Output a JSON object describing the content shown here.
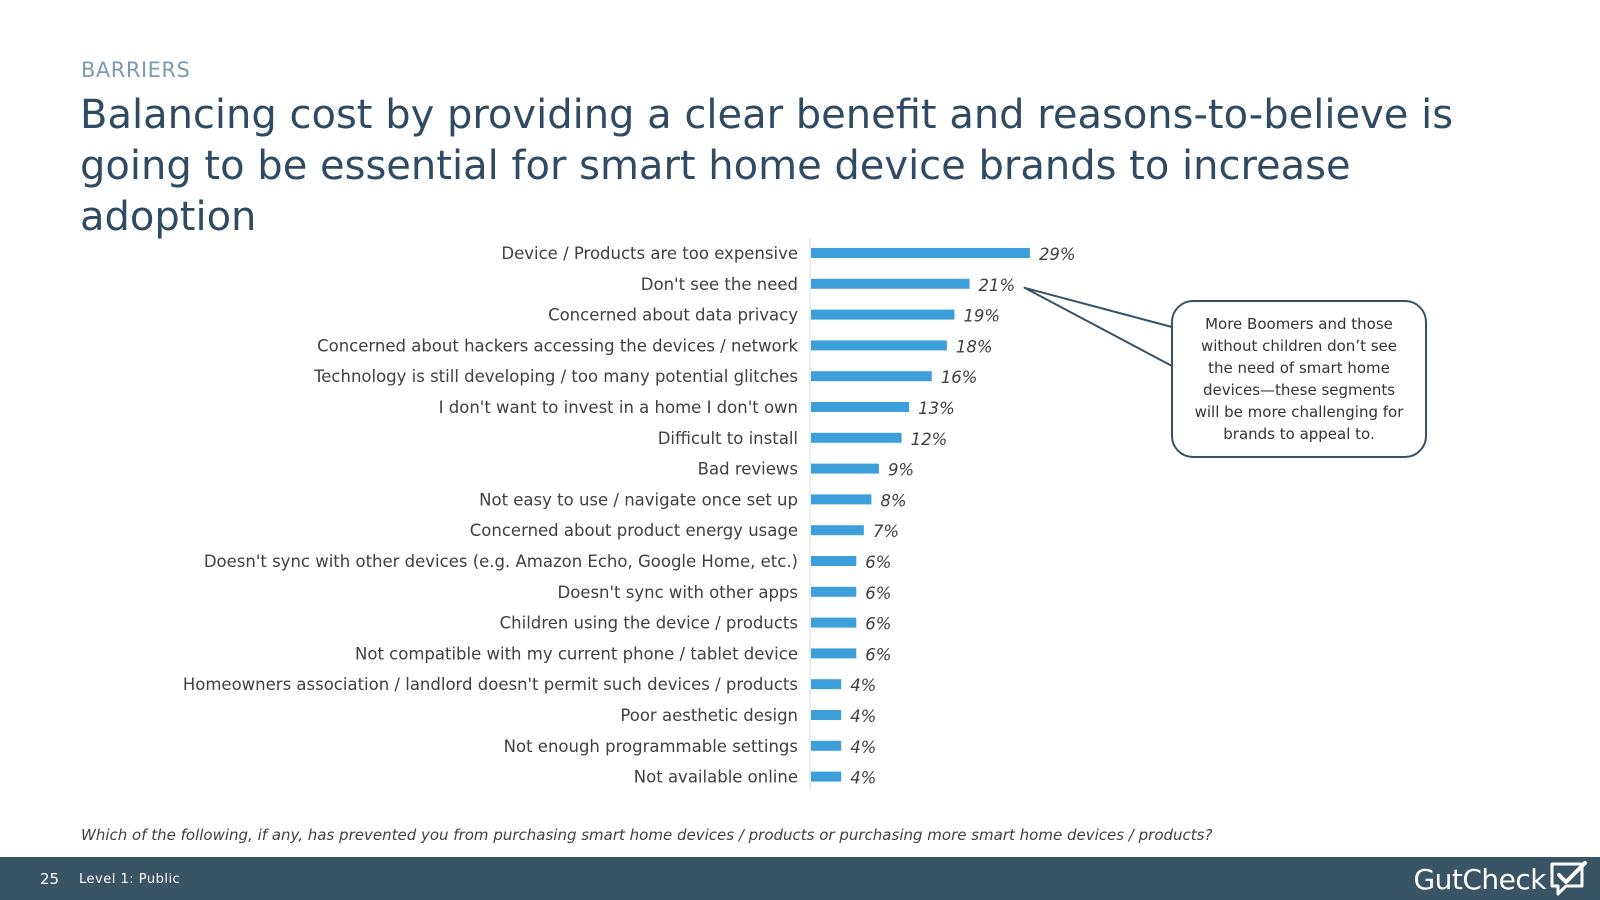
{
  "header": {
    "section": "BARRIERS",
    "title": "Balancing cost by providing a clear benefit and reasons-to-believe is going to be essential for smart home device brands to increase adoption"
  },
  "chart_data": {
    "type": "bar",
    "orientation": "horizontal",
    "categories": [
      "Device / Products are too expensive",
      "Don't see the need",
      "Concerned about data privacy",
      "Concerned about hackers accessing the devices / network",
      "Technology is still developing / too many potential glitches",
      "I don't want to invest in a home I don't own",
      "Difficult to install",
      "Bad reviews",
      "Not easy to use / navigate once set up",
      "Concerned about product energy usage",
      "Doesn't sync with other devices (e.g. Amazon Echo, Google Home, etc.)",
      "Doesn't sync with other apps",
      "Children using the device / products",
      "Not compatible with my current phone / tablet device",
      "Homeowners association / landlord doesn't permit such devices / products",
      "Poor aesthetic design",
      "Not enough programmable settings",
      "Not available online"
    ],
    "values": [
      29,
      21,
      19,
      18,
      16,
      13,
      12,
      9,
      8,
      7,
      6,
      6,
      6,
      6,
      4,
      4,
      4,
      4
    ],
    "value_labels": [
      "29%",
      "21%",
      "19%",
      "18%",
      "16%",
      "13%",
      "12%",
      "9%",
      "8%",
      "7%",
      "6%",
      "6%",
      "6%",
      "6%",
      "4%",
      "4%",
      "4%",
      "4%"
    ],
    "xlim": [
      0,
      100
    ],
    "bar_color": "#3d9fd9",
    "grid": false
  },
  "callout": {
    "text": "More Boomers and those without children don’t see the need of smart home devices—these segments will be more challenging for brands to appeal to.",
    "points_to": "Don't see the need"
  },
  "question": "Which of the following, if any, has prevented you from purchasing smart home devices / products or purchasing more smart home devices / products?",
  "footer": {
    "page_number": "25",
    "classification": "Level 1: Public",
    "logo_text": "GutCheck",
    "logo_icon": "speech-bubble-check-icon"
  },
  "colors": {
    "title": "#2f4b63",
    "section": "#7b9bb0",
    "footer_bg": "#395465",
    "bar": "#3d9fd9"
  }
}
